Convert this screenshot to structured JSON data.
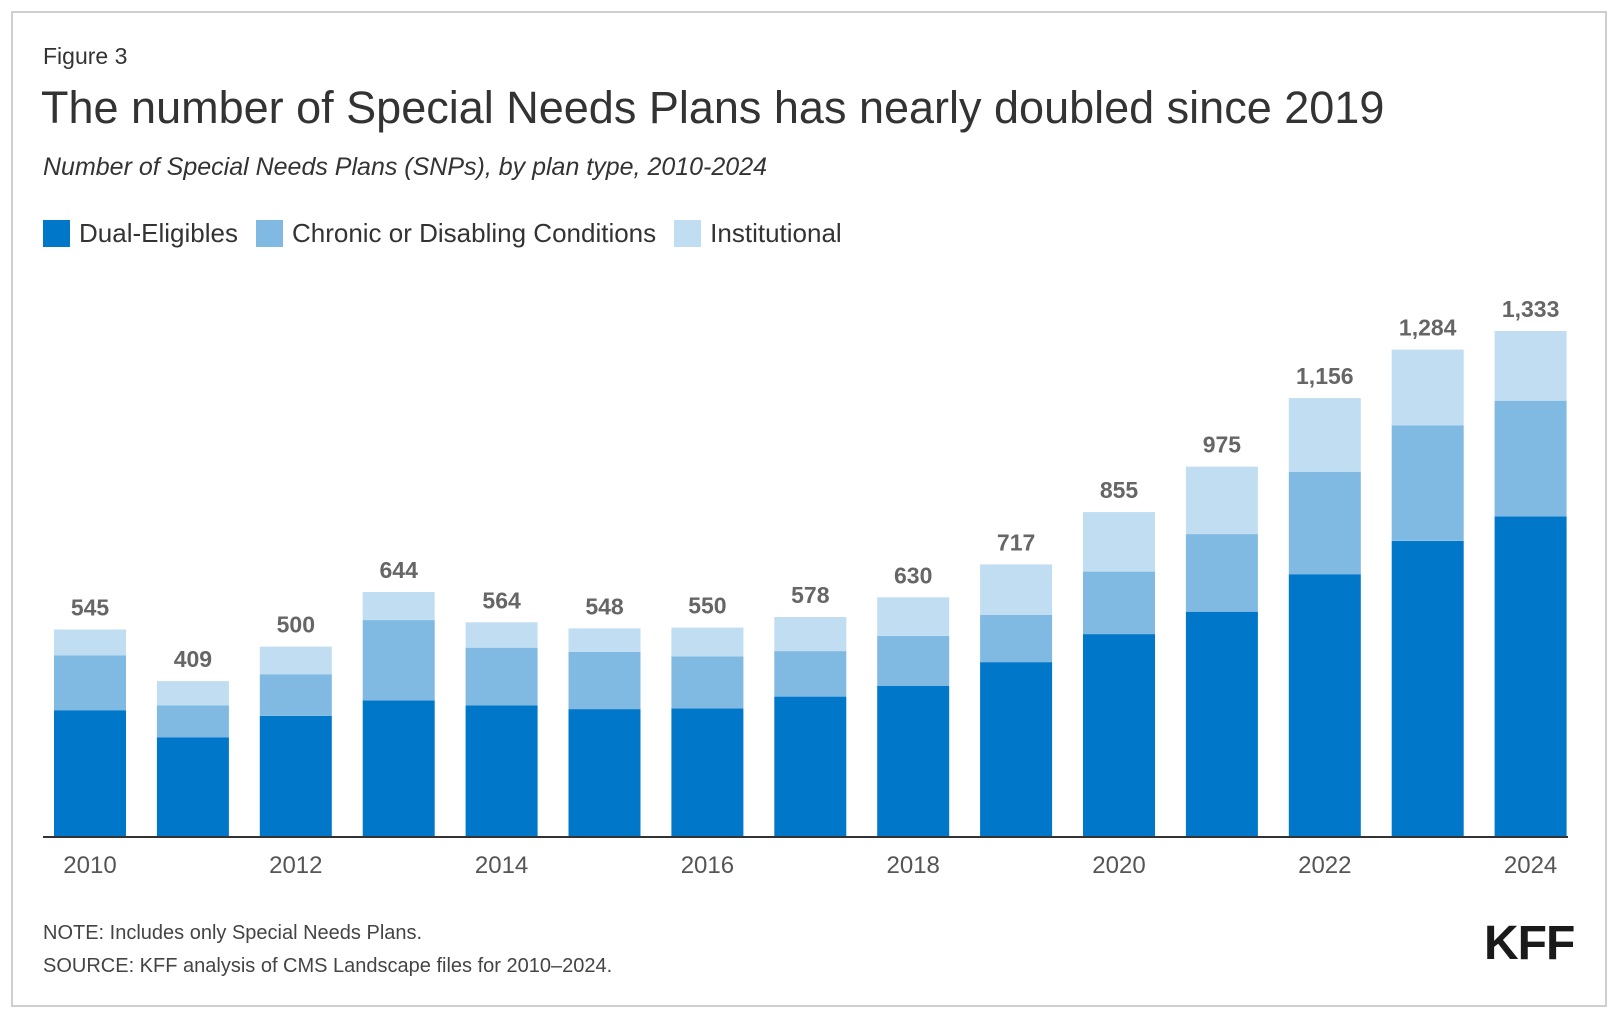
{
  "figure_label": "Figure 3",
  "title": "The number of Special Needs Plans has nearly doubled since 2019",
  "subtitle": "Number of Special Needs Plans (SNPs), by plan type, 2010-2024",
  "note": "NOTE: Includes only Special Needs Plans.",
  "source": "SOURCE: KFF analysis of CMS Landscape files for 2010–2024.",
  "logo_text": "KFF",
  "colors": {
    "dual": "#0077c8",
    "chronic": "#80b9e2",
    "institutional": "#c1ddf1",
    "axis": "#333333",
    "label": "#666666"
  },
  "chart_data": {
    "type": "bar",
    "stacked": true,
    "categories": [
      "2010",
      "2011",
      "2012",
      "2013",
      "2014",
      "2015",
      "2016",
      "2017",
      "2018",
      "2019",
      "2020",
      "2021",
      "2022",
      "2023",
      "2024"
    ],
    "x_tick_labels": [
      "2010",
      "",
      "2012",
      "",
      "2014",
      "",
      "2016",
      "",
      "2018",
      "",
      "2020",
      "",
      "2022",
      "",
      "2024"
    ],
    "series": [
      {
        "name": "Dual-Eligibles",
        "values": [
          332,
          260,
          317,
          358,
          345,
          335,
          337,
          368,
          396,
          459,
          533,
          592,
          691,
          779,
          844
        ]
      },
      {
        "name": "Chronic or Disabling Conditions",
        "values": [
          145,
          85,
          110,
          212,
          152,
          151,
          137,
          120,
          132,
          125,
          165,
          205,
          270,
          305,
          305
        ]
      },
      {
        "name": "Institutional",
        "values": [
          68,
          64,
          73,
          74,
          67,
          62,
          76,
          90,
          102,
          133,
          157,
          178,
          195,
          200,
          184
        ]
      }
    ],
    "totals": [
      545,
      409,
      500,
      644,
      564,
      548,
      550,
      578,
      630,
      717,
      855,
      975,
      1156,
      1284,
      1333
    ],
    "total_labels": [
      "545",
      "409",
      "500",
      "644",
      "564",
      "548",
      "550",
      "578",
      "630",
      "717",
      "855",
      "975",
      "1,156",
      "1,284",
      "1,333"
    ],
    "ylim": [
      0,
      1333
    ],
    "legend_position": "top-left",
    "grid": false
  }
}
